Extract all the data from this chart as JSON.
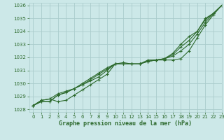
{
  "title": "Graphe pression niveau de la mer (hPa)",
  "bg_color": "#cce8e8",
  "grid_color": "#aacccc",
  "line_color": "#2d6a2d",
  "xlim": [
    -0.5,
    23
  ],
  "ylim": [
    1027.8,
    1036.2
  ],
  "xticks": [
    0,
    1,
    2,
    3,
    4,
    5,
    6,
    7,
    8,
    9,
    10,
    11,
    12,
    13,
    14,
    15,
    16,
    17,
    18,
    19,
    20,
    21,
    22,
    23
  ],
  "yticks": [
    1028,
    1029,
    1030,
    1031,
    1032,
    1033,
    1034,
    1035,
    1036
  ],
  "series": [
    [
      1028.3,
      1028.7,
      1028.8,
      1028.6,
      1028.7,
      1029.1,
      1029.5,
      1029.9,
      1030.3,
      1030.7,
      1031.5,
      1031.5,
      1031.5,
      1031.5,
      1031.8,
      1031.8,
      1031.8,
      1031.8,
      1031.9,
      1032.5,
      1033.5,
      1034.5,
      1035.3,
      1036.0
    ],
    [
      1028.3,
      1028.7,
      1028.8,
      1029.2,
      1029.4,
      1029.6,
      1029.9,
      1030.2,
      1030.5,
      1031.0,
      1031.5,
      1031.6,
      1031.5,
      1031.5,
      1031.7,
      1031.8,
      1031.9,
      1032.1,
      1032.5,
      1033.0,
      1033.8,
      1034.7,
      1035.4,
      1036.0
    ],
    [
      1028.3,
      1028.6,
      1028.6,
      1029.1,
      1029.3,
      1029.6,
      1029.9,
      1030.3,
      1030.7,
      1031.1,
      1031.5,
      1031.5,
      1031.5,
      1031.5,
      1031.7,
      1031.8,
      1031.9,
      1032.2,
      1032.8,
      1033.3,
      1034.0,
      1034.9,
      1035.4,
      1036.0
    ],
    [
      1028.3,
      1028.6,
      1028.6,
      1029.1,
      1029.3,
      1029.6,
      1030.0,
      1030.4,
      1030.8,
      1031.2,
      1031.5,
      1031.5,
      1031.5,
      1031.5,
      1031.7,
      1031.8,
      1031.9,
      1032.3,
      1033.0,
      1033.6,
      1034.0,
      1035.0,
      1035.4,
      1036.0
    ]
  ]
}
